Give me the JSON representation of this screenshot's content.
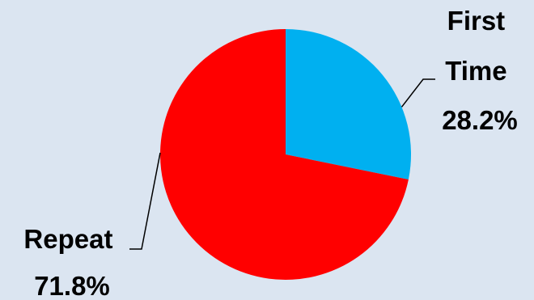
{
  "chart_data": {
    "type": "pie",
    "title": "",
    "slices": [
      {
        "label_lines": [
          "First",
          "Time"
        ],
        "percent_label": "28.2%",
        "value": 28.2,
        "color": "#00b0f0"
      },
      {
        "label_lines": [
          "Repeat"
        ],
        "percent_label": "71.8%",
        "value": 71.8,
        "color": "#ff0000"
      }
    ],
    "start_angle": "12 o'clock",
    "direction": "clockwise",
    "legend": "none",
    "background": "#dbe5f1"
  }
}
